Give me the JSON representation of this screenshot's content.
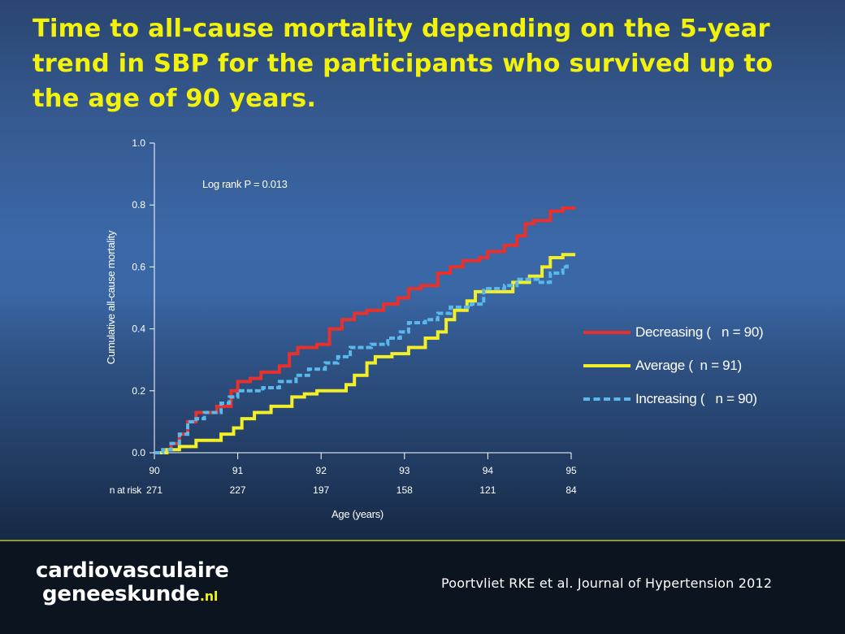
{
  "slide": {
    "title": "Time to all-cause mortality depending on the 5-year trend in SBP for the participants who survived up to the age of 90 years.",
    "citation": "Poortvliet RKE et al. Journal of Hypertension 2012",
    "logo": {
      "line1": "cardiovasculaire",
      "line2": "geneeskunde",
      "suffix": ".nl"
    }
  },
  "colors": {
    "decreasing": "#e8312c",
    "average": "#f2ee28",
    "increasing": "#5ab8ea",
    "title": "#f2f20c",
    "axis_text": "#ffffff"
  },
  "chart_data": {
    "type": "line",
    "step": true,
    "title": "",
    "xlabel": "Age (years)",
    "ylabel": "Cumulative all-cause mortality",
    "xlim": [
      90,
      95
    ],
    "ylim": [
      0,
      1
    ],
    "xticks": [
      90,
      91,
      92,
      93,
      94,
      95
    ],
    "yticks": [
      "0.0",
      "0.2",
      "0.4",
      "0.6",
      "0.8",
      "1.0"
    ],
    "annotation": "Log rank  P = 0.013",
    "risk_table": {
      "label": "n at risk",
      "values": [
        "271",
        "227",
        "197",
        "158",
        "121",
        "84"
      ]
    },
    "legend_position": "right",
    "series": [
      {
        "name": "Decreasing (   n = 90)",
        "key": "decreasing",
        "style": "solid",
        "points": [
          [
            90.0,
            0.0
          ],
          [
            90.1,
            0.01
          ],
          [
            90.2,
            0.03
          ],
          [
            90.3,
            0.06
          ],
          [
            90.4,
            0.1
          ],
          [
            90.5,
            0.13
          ],
          [
            90.75,
            0.15
          ],
          [
            90.92,
            0.2
          ],
          [
            91.0,
            0.23
          ],
          [
            91.15,
            0.24
          ],
          [
            91.28,
            0.26
          ],
          [
            91.5,
            0.28
          ],
          [
            91.62,
            0.32
          ],
          [
            91.72,
            0.34
          ],
          [
            91.95,
            0.35
          ],
          [
            92.1,
            0.4
          ],
          [
            92.25,
            0.43
          ],
          [
            92.4,
            0.45
          ],
          [
            92.55,
            0.46
          ],
          [
            92.75,
            0.48
          ],
          [
            92.92,
            0.5
          ],
          [
            93.05,
            0.53
          ],
          [
            93.2,
            0.54
          ],
          [
            93.4,
            0.58
          ],
          [
            93.55,
            0.6
          ],
          [
            93.7,
            0.62
          ],
          [
            93.9,
            0.63
          ],
          [
            94.0,
            0.65
          ],
          [
            94.2,
            0.67
          ],
          [
            94.35,
            0.7
          ],
          [
            94.45,
            0.74
          ],
          [
            94.55,
            0.75
          ],
          [
            94.75,
            0.78
          ],
          [
            94.9,
            0.79
          ],
          [
            95.05,
            0.79
          ]
        ]
      },
      {
        "name": "Average (  n = 91)",
        "key": "average",
        "style": "solid",
        "points": [
          [
            90.0,
            0.0
          ],
          [
            90.15,
            0.01
          ],
          [
            90.3,
            0.02
          ],
          [
            90.5,
            0.04
          ],
          [
            90.8,
            0.06
          ],
          [
            90.95,
            0.08
          ],
          [
            91.05,
            0.11
          ],
          [
            91.2,
            0.13
          ],
          [
            91.4,
            0.15
          ],
          [
            91.65,
            0.18
          ],
          [
            91.8,
            0.19
          ],
          [
            91.95,
            0.2
          ],
          [
            92.05,
            0.2
          ],
          [
            92.3,
            0.22
          ],
          [
            92.4,
            0.25
          ],
          [
            92.55,
            0.29
          ],
          [
            92.65,
            0.31
          ],
          [
            92.85,
            0.32
          ],
          [
            93.05,
            0.34
          ],
          [
            93.25,
            0.37
          ],
          [
            93.4,
            0.39
          ],
          [
            93.5,
            0.43
          ],
          [
            93.6,
            0.46
          ],
          [
            93.75,
            0.49
          ],
          [
            93.85,
            0.52
          ],
          [
            94.0,
            0.52
          ],
          [
            94.3,
            0.55
          ],
          [
            94.5,
            0.57
          ],
          [
            94.65,
            0.6
          ],
          [
            94.75,
            0.63
          ],
          [
            94.9,
            0.64
          ],
          [
            95.05,
            0.64
          ]
        ]
      },
      {
        "name": "Increasing (   n = 90)",
        "key": "increasing",
        "style": "dashed",
        "points": [
          [
            90.0,
            0.0
          ],
          [
            90.1,
            0.01
          ],
          [
            90.2,
            0.03
          ],
          [
            90.3,
            0.06
          ],
          [
            90.4,
            0.1
          ],
          [
            90.5,
            0.11
          ],
          [
            90.6,
            0.13
          ],
          [
            90.8,
            0.16
          ],
          [
            90.9,
            0.18
          ],
          [
            91.0,
            0.2
          ],
          [
            91.3,
            0.21
          ],
          [
            91.5,
            0.23
          ],
          [
            91.7,
            0.25
          ],
          [
            91.85,
            0.27
          ],
          [
            92.05,
            0.29
          ],
          [
            92.2,
            0.31
          ],
          [
            92.35,
            0.34
          ],
          [
            92.6,
            0.35
          ],
          [
            92.8,
            0.37
          ],
          [
            92.95,
            0.39
          ],
          [
            93.05,
            0.42
          ],
          [
            93.25,
            0.43
          ],
          [
            93.4,
            0.45
          ],
          [
            93.55,
            0.47
          ],
          [
            93.8,
            0.48
          ],
          [
            93.95,
            0.53
          ],
          [
            94.2,
            0.54
          ],
          [
            94.35,
            0.56
          ],
          [
            94.6,
            0.55
          ],
          [
            94.75,
            0.58
          ],
          [
            94.9,
            0.6
          ],
          [
            94.95,
            0.61
          ]
        ]
      }
    ]
  }
}
